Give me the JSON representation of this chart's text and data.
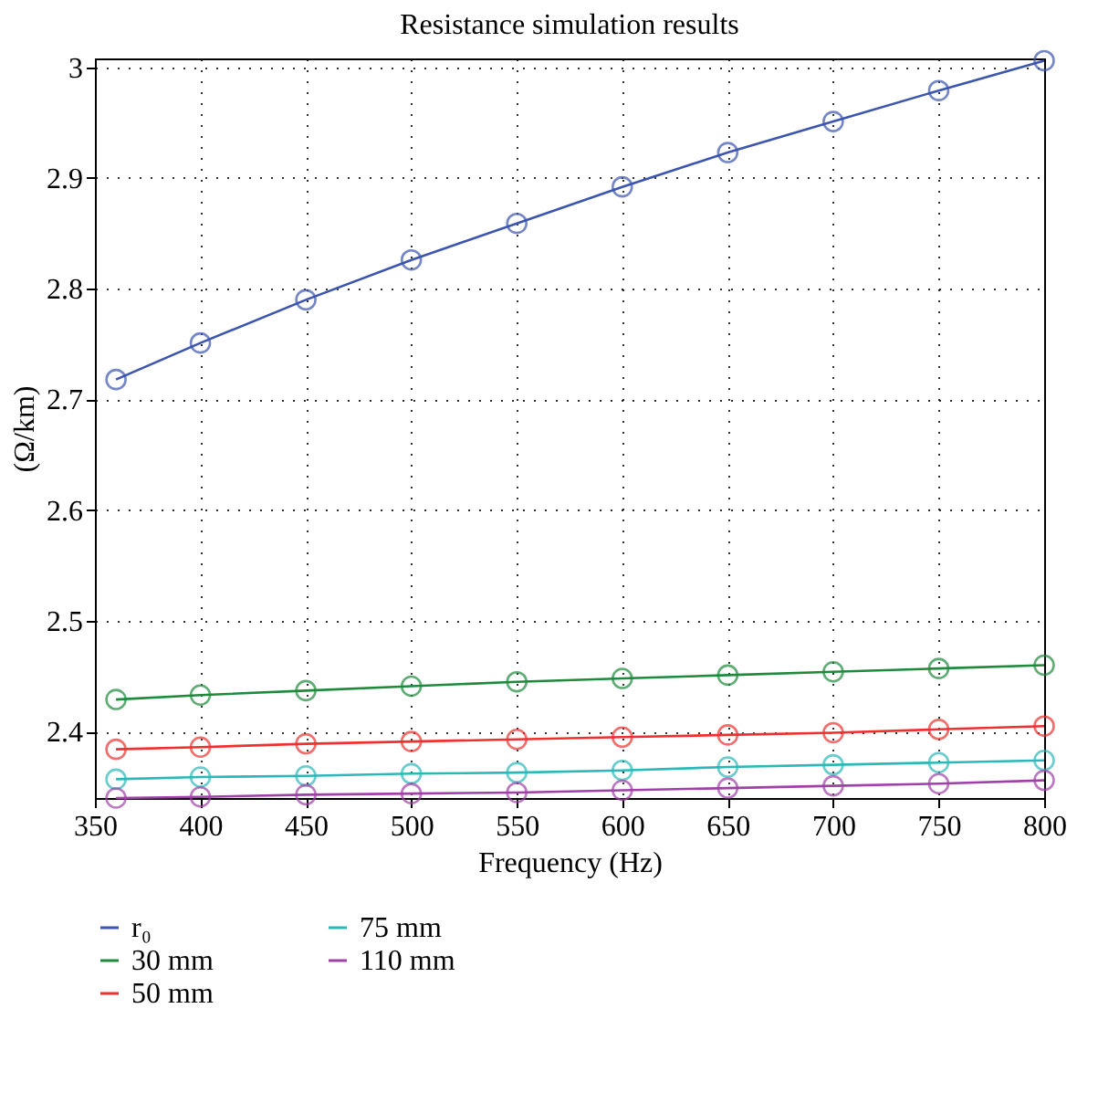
{
  "chart_data": {
    "type": "line",
    "title": "Resistance simulation results",
    "xlabel": "Frequency (Hz)",
    "ylabel": "(Ω/km)",
    "x": [
      360,
      400,
      450,
      500,
      550,
      600,
      650,
      700,
      750,
      800
    ],
    "series": [
      {
        "name": "r₀",
        "color": "#3b55b0",
        "values": [
          2.718,
          2.751,
          2.79,
          2.826,
          2.859,
          2.892,
          2.923,
          2.951,
          2.979,
          3.006
        ]
      },
      {
        "name": "30 mm",
        "color": "#1e8a3c",
        "values": [
          2.429,
          2.433,
          2.437,
          2.441,
          2.445,
          2.448,
          2.451,
          2.454,
          2.457,
          2.46
        ]
      },
      {
        "name": "50 mm",
        "color": "#f03030",
        "values": [
          2.384,
          2.386,
          2.389,
          2.391,
          2.393,
          2.395,
          2.397,
          2.399,
          2.402,
          2.405
        ]
      },
      {
        "name": "75 mm",
        "color": "#2ab8b8",
        "values": [
          2.357,
          2.359,
          2.36,
          2.362,
          2.363,
          2.365,
          2.368,
          2.37,
          2.372,
          2.374
        ]
      },
      {
        "name": "110 mm",
        "color": "#a040a8",
        "values": [
          2.34,
          2.341,
          2.343,
          2.344,
          2.345,
          2.347,
          2.349,
          2.351,
          2.353,
          2.356
        ]
      }
    ],
    "xlim": [
      350,
      800
    ],
    "xticks": [
      350,
      400,
      450,
      500,
      550,
      600,
      650,
      700,
      750,
      800
    ],
    "ylim": [
      2.34,
      3.008
    ],
    "yticks": [
      2.4,
      2.5,
      2.6,
      2.7,
      2.8,
      2.9,
      3
    ],
    "grid": true,
    "legend": "bottom",
    "marker": "circle",
    "line_style": "solid"
  }
}
